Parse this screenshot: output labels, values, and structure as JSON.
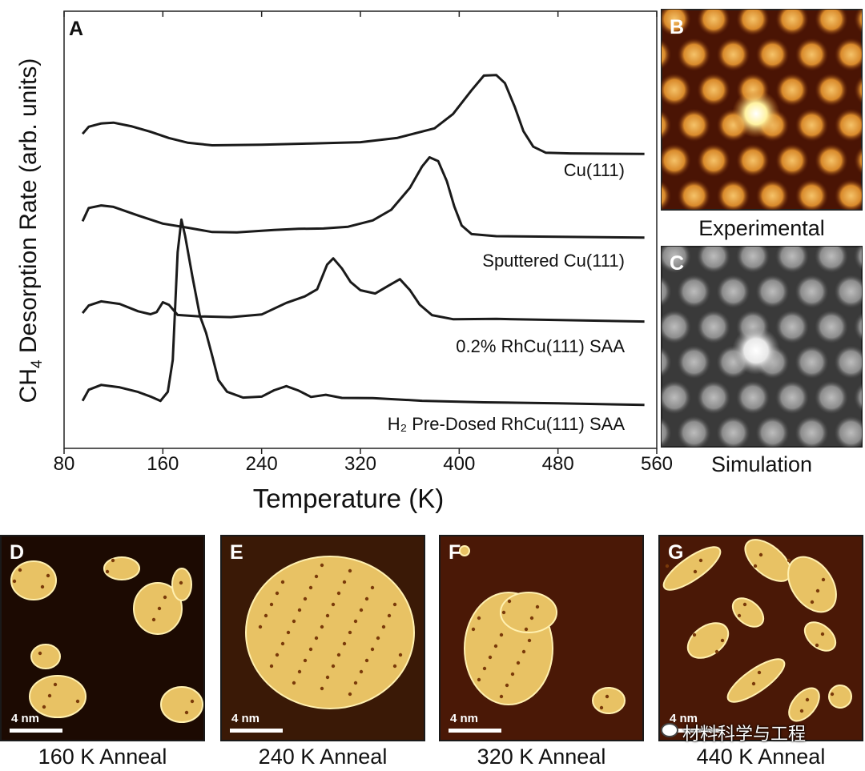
{
  "chart_data": {
    "type": "line",
    "panel_label": "A",
    "xlabel": "Temperature (K)",
    "ylabel_main": "CH",
    "ylabel_sub": "4",
    "ylabel_rest": " Desorption Rate (arb. units)",
    "xlim": [
      80,
      560
    ],
    "xticks": [
      "80",
      "160",
      "240",
      "320",
      "400",
      "480",
      "560"
    ],
    "y_ticks_shown": false,
    "series": [
      {
        "name": "Cu(111)",
        "offset": 3,
        "points": [
          [
            95,
            0.25
          ],
          [
            100,
            0.35
          ],
          [
            110,
            0.38
          ],
          [
            120,
            0.4
          ],
          [
            135,
            0.35
          ],
          [
            150,
            0.28
          ],
          [
            165,
            0.2
          ],
          [
            180,
            0.14
          ],
          [
            200,
            0.12
          ],
          [
            240,
            0.12
          ],
          [
            280,
            0.13
          ],
          [
            320,
            0.15
          ],
          [
            350,
            0.2
          ],
          [
            380,
            0.32
          ],
          [
            395,
            0.5
          ],
          [
            410,
            0.8
          ],
          [
            420,
            0.98
          ],
          [
            430,
            1.0
          ],
          [
            437,
            0.9
          ],
          [
            445,
            0.6
          ],
          [
            452,
            0.3
          ],
          [
            460,
            0.1
          ],
          [
            470,
            0.03
          ],
          [
            490,
            0.01
          ],
          [
            550,
            0.0
          ]
        ]
      },
      {
        "name": "Sputtered Cu(111)",
        "offset": 2,
        "points": [
          [
            95,
            0.2
          ],
          [
            100,
            0.38
          ],
          [
            110,
            0.4
          ],
          [
            120,
            0.38
          ],
          [
            140,
            0.28
          ],
          [
            160,
            0.18
          ],
          [
            180,
            0.12
          ],
          [
            200,
            0.08
          ],
          [
            220,
            0.06
          ],
          [
            250,
            0.09
          ],
          [
            270,
            0.12
          ],
          [
            290,
            0.11
          ],
          [
            310,
            0.14
          ],
          [
            330,
            0.22
          ],
          [
            345,
            0.35
          ],
          [
            360,
            0.62
          ],
          [
            370,
            0.9
          ],
          [
            376,
            1.0
          ],
          [
            383,
            0.95
          ],
          [
            390,
            0.7
          ],
          [
            396,
            0.4
          ],
          [
            402,
            0.15
          ],
          [
            410,
            0.05
          ],
          [
            430,
            0.02
          ],
          [
            550,
            0.0
          ]
        ]
      },
      {
        "name": "0.2% RhCu(111) SAA",
        "offset": 1,
        "points": [
          [
            95,
            0.1
          ],
          [
            100,
            0.2
          ],
          [
            110,
            0.25
          ],
          [
            125,
            0.22
          ],
          [
            140,
            0.13
          ],
          [
            150,
            0.08
          ],
          [
            155,
            0.12
          ],
          [
            160,
            0.23
          ],
          [
            165,
            0.2
          ],
          [
            172,
            0.07
          ],
          [
            190,
            0.05
          ],
          [
            215,
            0.05
          ],
          [
            240,
            0.09
          ],
          [
            260,
            0.22
          ],
          [
            275,
            0.3
          ],
          [
            285,
            0.4
          ],
          [
            293,
            0.7
          ],
          [
            298,
            0.78
          ],
          [
            305,
            0.65
          ],
          [
            312,
            0.48
          ],
          [
            320,
            0.38
          ],
          [
            332,
            0.35
          ],
          [
            343,
            0.45
          ],
          [
            352,
            0.52
          ],
          [
            360,
            0.38
          ],
          [
            368,
            0.2
          ],
          [
            378,
            0.07
          ],
          [
            395,
            0.03
          ],
          [
            430,
            0.02
          ],
          [
            550,
            0.0
          ]
        ]
      },
      {
        "name": "H₂ Pre-Dosed RhCu(111) SAA",
        "offset": 0,
        "points": [
          [
            95,
            0.05
          ],
          [
            100,
            0.18
          ],
          [
            110,
            0.25
          ],
          [
            125,
            0.22
          ],
          [
            140,
            0.16
          ],
          [
            150,
            0.1
          ],
          [
            158,
            0.05
          ],
          [
            164,
            0.15
          ],
          [
            168,
            0.55
          ],
          [
            172,
            1.9
          ],
          [
            175,
            2.3
          ],
          [
            178,
            2.1
          ],
          [
            184,
            1.6
          ],
          [
            190,
            1.1
          ],
          [
            195,
            0.9
          ],
          [
            200,
            0.6
          ],
          [
            205,
            0.3
          ],
          [
            212,
            0.15
          ],
          [
            225,
            0.09
          ],
          [
            240,
            0.1
          ],
          [
            250,
            0.18
          ],
          [
            260,
            0.22
          ],
          [
            270,
            0.17
          ],
          [
            280,
            0.1
          ],
          [
            292,
            0.12
          ],
          [
            305,
            0.08
          ],
          [
            330,
            0.07
          ],
          [
            370,
            0.04
          ],
          [
            420,
            0.03
          ],
          [
            480,
            0.02
          ],
          [
            550,
            0.0
          ]
        ]
      }
    ]
  },
  "side_panels": [
    {
      "label": "B",
      "caption": "Experimental",
      "style": "experimental"
    },
    {
      "label": "C",
      "caption": "Simulation",
      "style": "simulation"
    }
  ],
  "bottom_panels": [
    {
      "label": "D",
      "caption": "160 K Anneal",
      "scale": "4 nm"
    },
    {
      "label": "E",
      "caption": "240 K Anneal",
      "scale": "4 nm"
    },
    {
      "label": "F",
      "caption": "320 K Anneal",
      "scale": "4 nm"
    },
    {
      "label": "G",
      "caption": "440 K Anneal",
      "scale": "4 nm"
    }
  ],
  "watermark": {
    "text": "材料科学与工程",
    "icon": "wechat-icon"
  },
  "colors": {
    "stm_dark": "#200c02",
    "stm_bright": "#f5df8a",
    "stm_mid": "#c9852c",
    "sim_bg": "#3a3a3a"
  }
}
